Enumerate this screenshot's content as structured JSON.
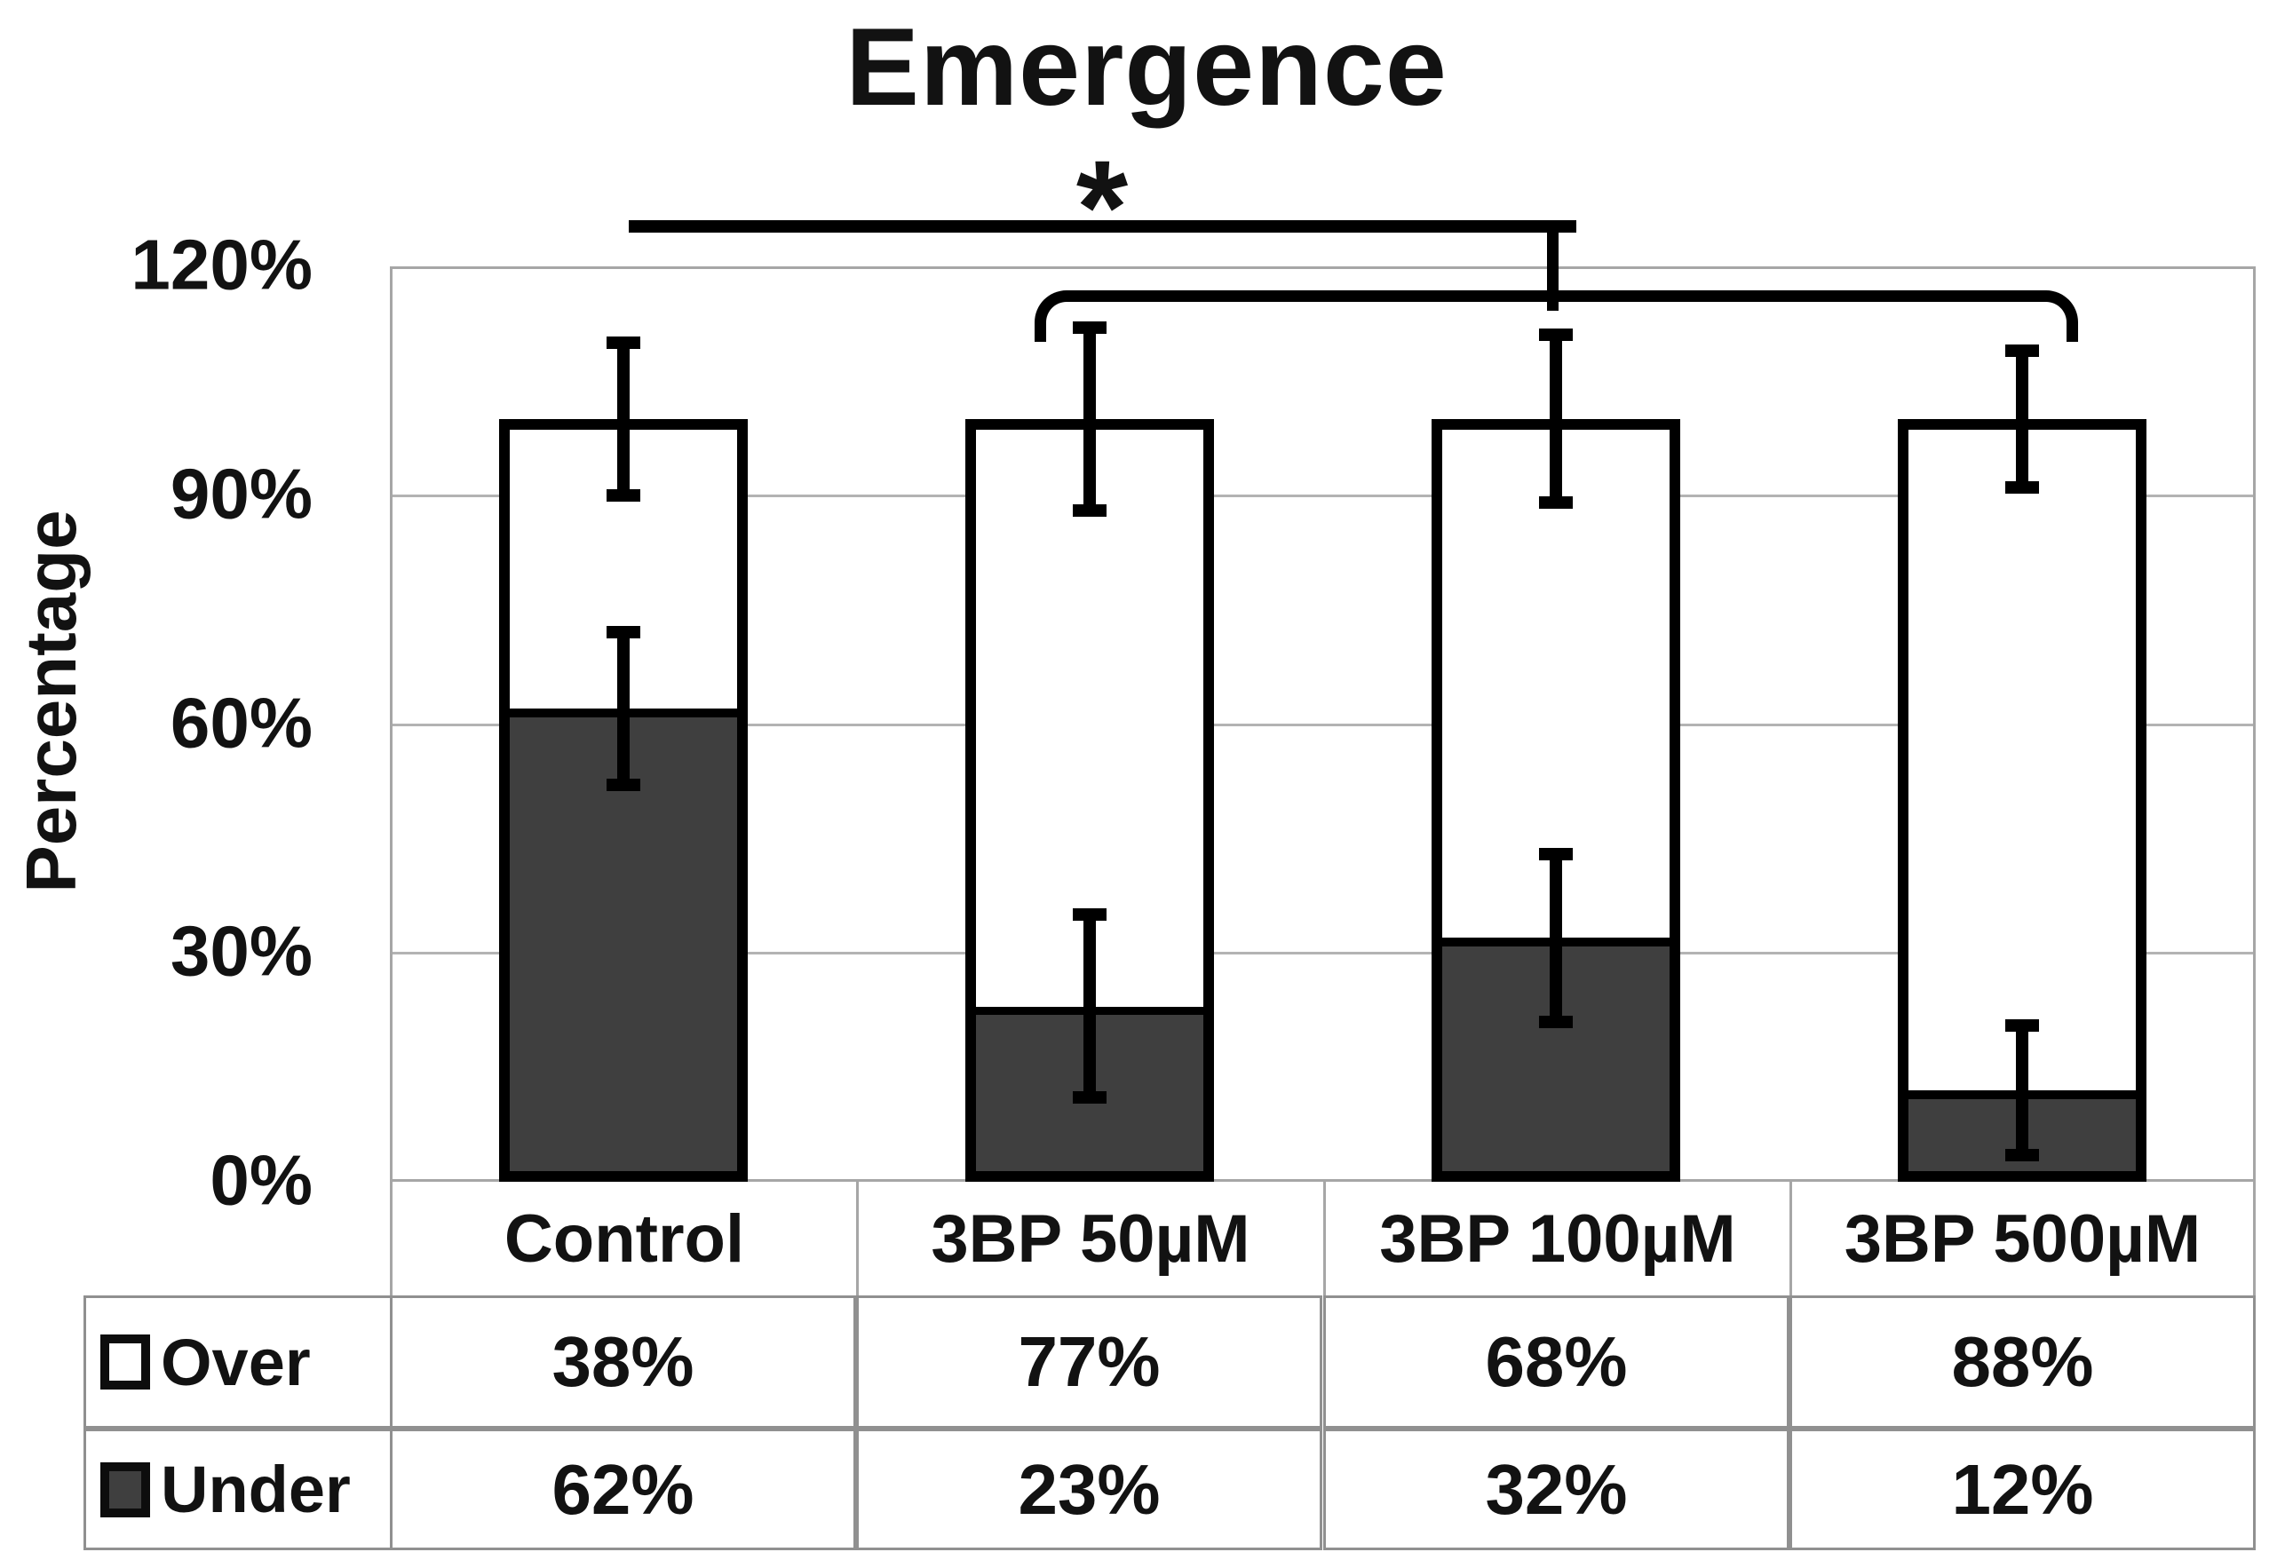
{
  "title": "Emergence",
  "chart_data": {
    "type": "bar",
    "stacked": true,
    "title": "Emergence",
    "ylabel": "Percentage",
    "xlabel": "",
    "categories": [
      "Control",
      "3BP 50µM",
      "3BP 100µM",
      "3BP 500µM"
    ],
    "series": [
      {
        "name": "Under",
        "values": [
          62,
          23,
          32,
          12
        ],
        "error_pp": [
          10,
          12,
          11,
          8.5
        ],
        "color": "#3f3f3f"
      },
      {
        "name": "Over",
        "values": [
          38,
          77,
          68,
          88
        ],
        "color": "#ffffff"
      }
    ],
    "stack_totals": [
      100,
      100,
      100,
      100
    ],
    "total_error_pp": [
      10,
      12,
      11,
      9
    ],
    "ylim": [
      0,
      120
    ],
    "ytick_values": [
      0,
      30,
      60,
      90,
      120
    ],
    "ytick_labels": [
      "0%",
      "30%",
      "60%",
      "90%",
      "120%"
    ],
    "grid": true,
    "legend_position": "left-table",
    "annotations": {
      "star_label": "*",
      "comparisons": [
        {
          "style": "line",
          "label": "*",
          "from": "Control",
          "to": "3BP 100µM",
          "from_index": 0,
          "to_index": 2
        },
        {
          "style": "bracket",
          "label": "",
          "from": "3BP 50µM",
          "to": "3BP 500µM",
          "from_index": 1,
          "to_index": 3
        }
      ]
    }
  },
  "table": {
    "rows": [
      {
        "label": "Over",
        "swatch": "over",
        "values": [
          "38%",
          "77%",
          "68%",
          "88%"
        ]
      },
      {
        "label": "Under",
        "swatch": "under",
        "values": [
          "62%",
          "23%",
          "32%",
          "12%"
        ]
      }
    ]
  },
  "colors": {
    "under_fill": "#3f3f3f",
    "over_fill": "#ffffff",
    "bar_border": "#000000",
    "gridline": "#b3b3b3",
    "plot_border": "#a6a6a6",
    "table_border": "#909090",
    "text": "#121212"
  }
}
